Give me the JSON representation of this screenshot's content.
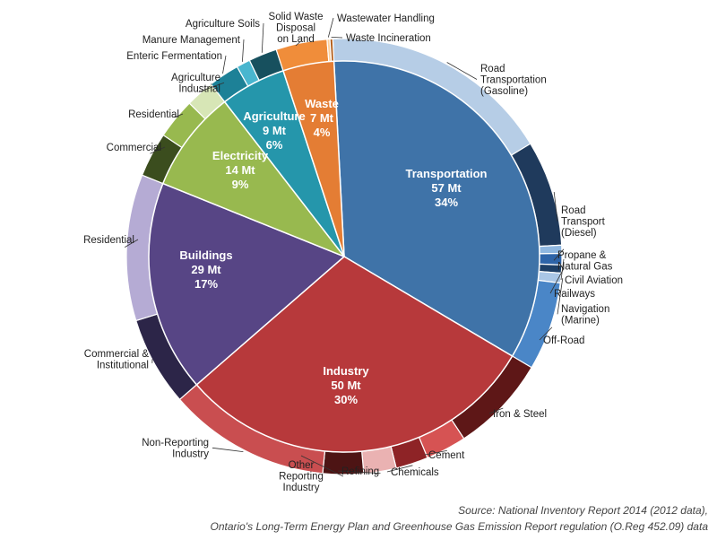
{
  "chart_data": {
    "type": "pie",
    "title": "",
    "inner": [
      {
        "name": "Transportation",
        "value": 57,
        "label_value": "57 Mt",
        "percent": "34%",
        "color": "#3f73a8"
      },
      {
        "name": "Industry",
        "value": 50,
        "label_value": "50 Mt",
        "percent": "30%",
        "color": "#b7393b"
      },
      {
        "name": "Buildings",
        "value": 29,
        "label_value": "29 Mt",
        "percent": "17%",
        "color": "#574585"
      },
      {
        "name": "Electricity",
        "value": 14,
        "label_value": "14 Mt",
        "percent": "9%",
        "color": "#98b94f"
      },
      {
        "name": "Agriculture",
        "value": 9,
        "label_value": "9 Mt",
        "percent": "6%",
        "color": "#2596ab"
      },
      {
        "name": "Waste",
        "value": 7,
        "label_value": "7 Mt",
        "percent": "4%",
        "color": "#e47d34"
      }
    ],
    "outer": [
      {
        "name": "Road Transportation (Gasoline)",
        "lines": [
          "Road",
          "Transportation",
          "(Gasoline)"
        ],
        "parent": "Transportation",
        "value": 28.5,
        "color": "#b6cde6"
      },
      {
        "name": "Road Transport (Diesel)",
        "lines": [
          "Road",
          "Transport",
          "(Diesel)"
        ],
        "parent": "Transportation",
        "value": 13,
        "color": "#1f3a5c"
      },
      {
        "name": "Propane & Natural Gas",
        "lines": [
          "Propane &",
          "Natural Gas"
        ],
        "parent": "Transportation",
        "value": 1,
        "color": "#8fb7e0"
      },
      {
        "name": "Civil Aviation",
        "lines": [
          "Civil Aviation"
        ],
        "parent": "Transportation",
        "value": 1.4,
        "color": "#2e64a8"
      },
      {
        "name": "Railways",
        "lines": [
          "Railways"
        ],
        "parent": "Transportation",
        "value": 1,
        "color": "#1e3f66"
      },
      {
        "name": "Navigation (Marine)",
        "lines": [
          "Navigation",
          "(Marine)"
        ],
        "parent": "Transportation",
        "value": 1.2,
        "color": "#a9c6e6"
      },
      {
        "name": "Off-Road",
        "lines": [
          "Off-Road"
        ],
        "parent": "Transportation",
        "value": 10.9,
        "color": "#4a86c7"
      },
      {
        "name": "Iron & Steel",
        "lines": [
          "Iron & Steel"
        ],
        "parent": "Industry",
        "value": 12,
        "color": "#5e1717"
      },
      {
        "name": "Cement",
        "lines": [
          "Cement"
        ],
        "parent": "Industry",
        "value": 5,
        "color": "#d65353"
      },
      {
        "name": "Chemicals",
        "lines": [
          "Chemicals"
        ],
        "parent": "Industry",
        "value": 4,
        "color": "#8e2326"
      },
      {
        "name": "Refining",
        "lines": [
          "Refining"
        ],
        "parent": "Industry",
        "value": 4,
        "color": "#eab2b2"
      },
      {
        "name": "Other Reporting Industry",
        "lines": [
          "Other",
          "Reporting",
          "Industry"
        ],
        "parent": "Industry",
        "value": 5,
        "color": "#4d1414"
      },
      {
        "name": "Non-Reporting Industry",
        "lines": [
          "Non-Reporting",
          "Industry"
        ],
        "parent": "Industry",
        "value": 20,
        "color": "#c94e50"
      },
      {
        "name": "Commercial & Institutional",
        "lines": [
          "Commercial &",
          "Institutional"
        ],
        "parent": "Buildings",
        "value": 11,
        "color": "#2c2548"
      },
      {
        "name": "Residential",
        "lines": [
          "Residential"
        ],
        "parent": "Buildings",
        "value": 18,
        "color": "#b5abd4"
      },
      {
        "name": "Commercial",
        "lines": [
          "Commercial"
        ],
        "parent": "Electricity",
        "value": 5.5,
        "color": "#3b4d1e"
      },
      {
        "name": "Residential",
        "lines": [
          "Residential"
        ],
        "parent": "Electricity",
        "value": 5,
        "color": "#98b94f"
      },
      {
        "name": "Agriculture Industrial",
        "lines": [
          "Agriculture",
          "Industrial"
        ],
        "parent": "Electricity",
        "value": 3.5,
        "color": "#d7e6b6"
      },
      {
        "name": "Enteric Fermentation",
        "lines": [
          "Enteric Fermentation"
        ],
        "parent": "Agriculture",
        "value": 3.8,
        "color": "#1d8197"
      },
      {
        "name": "Manure Management",
        "lines": [
          "Manure Management"
        ],
        "parent": "Agriculture",
        "value": 1.7,
        "color": "#49b6cf"
      },
      {
        "name": "Agriculture Soils",
        "lines": [
          "Agriculture Soils"
        ],
        "parent": "Agriculture",
        "value": 3.5,
        "color": "#17505e"
      },
      {
        "name": "Solid Waste Disposal on Land",
        "lines": [
          "Solid Waste",
          "Disposal",
          "on Land"
        ],
        "parent": "Waste",
        "value": 6.3,
        "color": "#f08d3a"
      },
      {
        "name": "Wastewater Handling",
        "lines": [
          "Wastewater Handling"
        ],
        "parent": "Waste",
        "value": 0.35,
        "color": "#ffcf9a"
      },
      {
        "name": "Waste Incineration",
        "lines": [
          "Waste Incineration"
        ],
        "parent": "Waste",
        "value": 0.35,
        "color": "#b35f1c"
      }
    ],
    "source_lines": [
      "Source: National Inventory Report 2014 (2012 data),",
      "Ontario's Long-Term Energy Plan and Greenhouse Gas Emission Report regulation (O.Reg 452.09) data"
    ]
  }
}
